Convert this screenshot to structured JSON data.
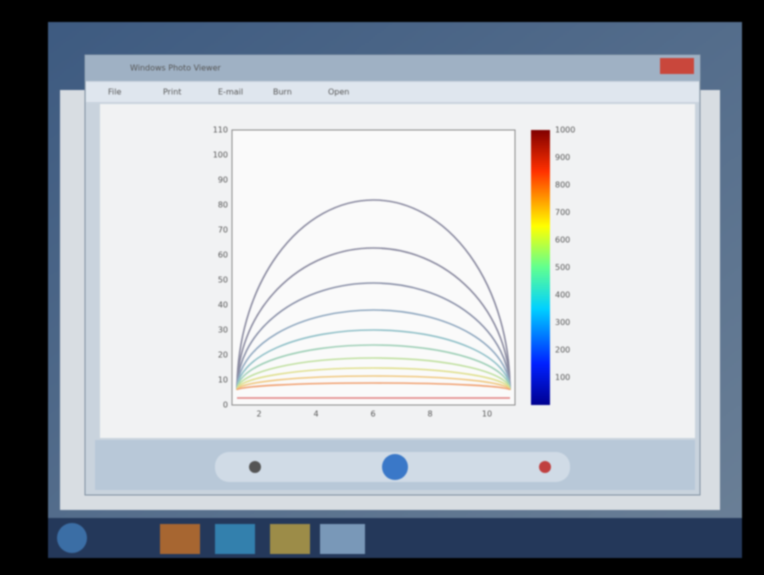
{
  "window": {
    "title": "Windows Photo Viewer",
    "menu": [
      "File",
      "Print",
      "E-mail",
      "Burn",
      "Open"
    ]
  },
  "plot": {
    "yticks": [
      0,
      10,
      20,
      30,
      40,
      50,
      60,
      70,
      80,
      90,
      100,
      110
    ],
    "xticks": [
      2,
      4,
      6,
      8,
      10
    ],
    "colorbar_ticks": [
      100,
      200,
      300,
      400,
      500,
      600,
      700,
      800,
      900,
      1000
    ]
  }
}
